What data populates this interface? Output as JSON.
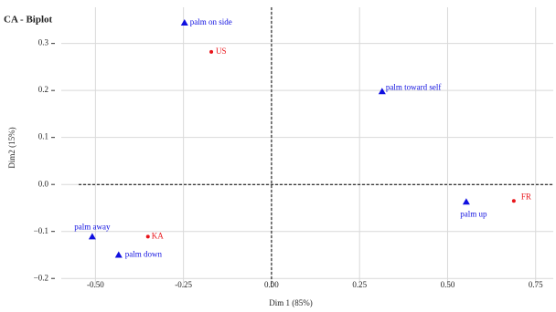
{
  "chart_data": {
    "type": "scatter",
    "title": "CA - Biplot",
    "x_label": "Dim 1 (85%)",
    "y_label": "Dim2 (15%)",
    "xlim": [
      -0.597,
      0.8
    ],
    "ylim": [
      -0.219,
      0.377
    ],
    "xticks": [
      {
        "value": -0.5,
        "label": "-0.50"
      },
      {
        "value": -0.25,
        "label": "-0.25"
      },
      {
        "value": 0,
        "label": "0.00"
      },
      0.25,
      {
        "value": 0.5,
        "label": "0.50"
      },
      0.75
    ],
    "yticks": [
      {
        "value": -0.2,
        "label": "−0.2"
      },
      {
        "value": -0.1,
        "label": "−0.1"
      },
      {
        "value": 0,
        "label": "0.0"
      },
      0.1,
      0.2,
      0.3
    ],
    "grid": true,
    "series": [
      {
        "color": "#e8141a",
        "marker": "circle",
        "labels": [
          "US",
          "FR",
          "KA"
        ],
        "x": [
          -0.171,
          0.688,
          -0.351
        ],
        "values": [
          0.282,
          -0.035,
          -0.111
        ]
      },
      {
        "color": "#1010e0",
        "marker": "triangle",
        "labels": [
          "palm on side",
          "palm toward self",
          "palm up",
          "palm away",
          "palm down"
        ],
        "x": [
          -0.247,
          0.314,
          0.553,
          -0.509,
          -0.434
        ],
        "values": [
          0.344,
          0.198,
          -0.037,
          -0.111,
          -0.15
        ]
      }
    ]
  }
}
